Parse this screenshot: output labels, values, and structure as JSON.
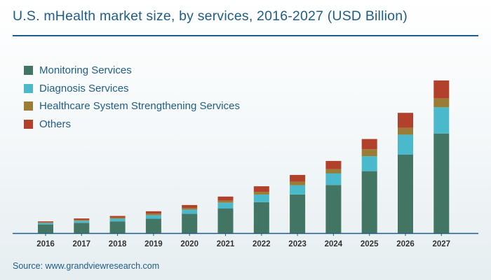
{
  "chart_data": {
    "type": "bar",
    "stacked": true,
    "title": "U.S. mHealth market size, by services, 2016-2027 (USD Billion)",
    "xlabel": "",
    "ylabel": "",
    "categories": [
      "2016",
      "2017",
      "2018",
      "2019",
      "2020",
      "2021",
      "2022",
      "2023",
      "2024",
      "2025",
      "2026",
      "2027"
    ],
    "series": [
      {
        "name": "Monitoring Services",
        "color": "#427563",
        "values": [
          0.42,
          0.5,
          0.57,
          0.7,
          0.94,
          1.2,
          1.5,
          1.87,
          2.33,
          3.0,
          3.8,
          4.83
        ]
      },
      {
        "name": "Diagnosis Services",
        "color": "#4ab9cc",
        "values": [
          0.07,
          0.1,
          0.13,
          0.17,
          0.2,
          0.27,
          0.37,
          0.45,
          0.57,
          0.73,
          0.97,
          1.27
        ]
      },
      {
        "name": "Healthcare System Strengthening Services",
        "color": "#9a7c34",
        "values": [
          0.03,
          0.04,
          0.05,
          0.07,
          0.07,
          0.1,
          0.13,
          0.17,
          0.2,
          0.33,
          0.33,
          0.43
        ]
      },
      {
        "name": "Others",
        "color": "#b2412b",
        "values": [
          0.05,
          0.07,
          0.08,
          0.12,
          0.15,
          0.2,
          0.27,
          0.33,
          0.4,
          0.5,
          0.73,
          0.87
        ]
      }
    ],
    "ylim": [
      0,
      7.5
    ],
    "grid": false,
    "legend_position": "top-left"
  },
  "source_text": "Source: www.grandviewresearch.com"
}
